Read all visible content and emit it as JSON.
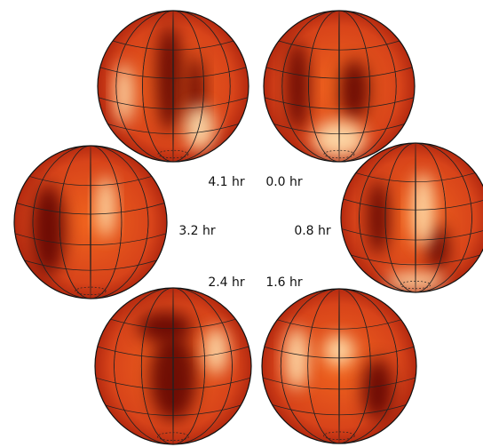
{
  "panels": [
    {
      "label": "4.1 hr"
    },
    {
      "label": "0.0 hr"
    },
    {
      "label": "3.2 hr"
    },
    {
      "label": "0.8 hr"
    },
    {
      "label": "2.4 hr"
    },
    {
      "label": "1.6 hr"
    }
  ]
}
